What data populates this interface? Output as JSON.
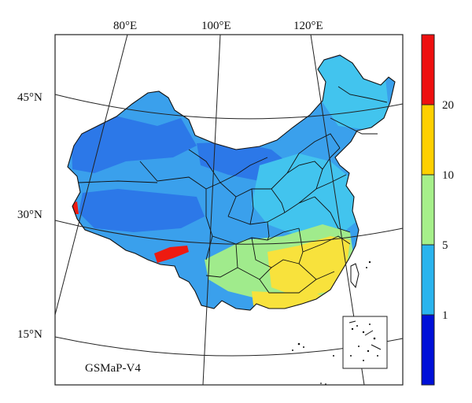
{
  "map": {
    "product_label": "GSMaP-V4",
    "longitude_labels": [
      "80°E",
      "100°E",
      "120°E"
    ],
    "latitude_labels": [
      "45°N",
      "30°N",
      "15°N"
    ],
    "colorbar": {
      "tick_labels": [
        "1",
        "5",
        "10",
        "20"
      ],
      "colors": [
        "#0010d8",
        "#2ab4ee",
        "#a6f08a",
        "#ffd000",
        "#ee1010"
      ]
    },
    "field_colors": {
      "dark_blue": "#2c78e8",
      "mid_blue": "#3aa0ec",
      "light_blue": "#42c4ee",
      "green": "#a0eb8c",
      "yellow": "#f8e23c",
      "red": "#ee1a10"
    }
  }
}
